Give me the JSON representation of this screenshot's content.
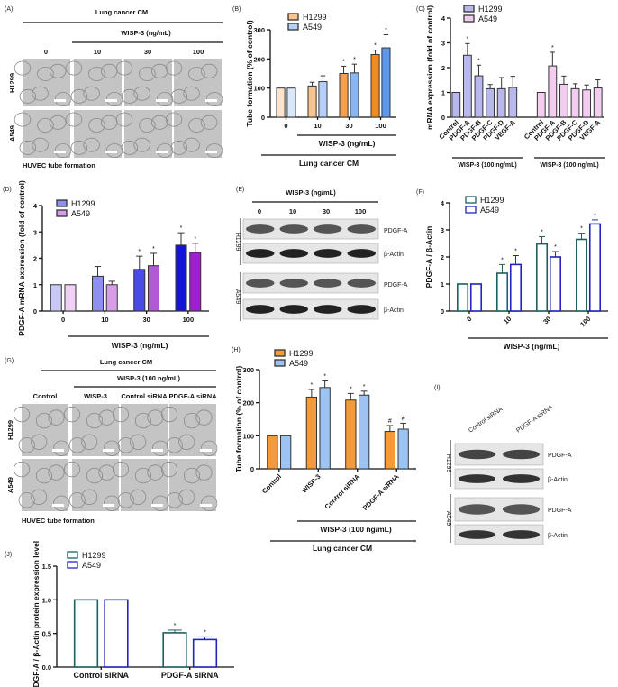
{
  "panels": {
    "A": {
      "tag": "(A)",
      "top": "Lung cancer CM",
      "sub": "WISP-3 (ng/mL)",
      "cols": [
        "0",
        "10",
        "30",
        "100"
      ],
      "rows": [
        "H1299",
        "A549"
      ],
      "caption": "HUVEC tube formation"
    },
    "E": {
      "tag": "(E)",
      "sub": "WISP-3 (ng/mL)",
      "cols": [
        "0",
        "10",
        "30",
        "100"
      ],
      "rows": [
        "H1299",
        "A549"
      ],
      "bands": [
        "PDGF-A",
        "β-Actin",
        "PDGF-A",
        "β-Actin"
      ]
    },
    "G": {
      "tag": "(G)",
      "top": "Lung cancer CM",
      "sub": "WISP-3 (100 ng/mL)",
      "cols": [
        "Control",
        "WISP-3",
        "Control siRNA",
        "PDGF-A siRNA"
      ],
      "rows": [
        "H1299",
        "A549"
      ],
      "caption": "HUVEC tube formation"
    },
    "I": {
      "tag": "(I)",
      "cols": [
        "Control siRNA",
        "PDGF-A siRNA"
      ],
      "rows": [
        "H1299",
        "A549"
      ],
      "bands": [
        "PDGF-A",
        "β-Actin",
        "PDGF-A",
        "β-Actin"
      ]
    }
  },
  "chart_data": [
    {
      "id": "B",
      "tag": "(B)",
      "type": "bar",
      "ylabel": "Tube formation (% of control)",
      "ylim": [
        0,
        300
      ],
      "yticks": [
        "0",
        "100",
        "200",
        "300"
      ],
      "categories": [
        "0",
        "10",
        "30",
        "100"
      ],
      "group_labels": [
        "WISP-3 (ng/mL)",
        "Lung cancer CM"
      ],
      "series": [
        {
          "name": "H1299",
          "values": [
            100,
            107,
            150,
            215
          ],
          "errors": [
            0,
            13,
            25,
            15
          ],
          "stars": [
            false,
            false,
            true,
            true
          ],
          "fills": [
            "#fde3cc",
            "#f9c38f",
            "#f6a04f",
            "#f28a1e"
          ],
          "stroke": "#333333"
        },
        {
          "name": "A549",
          "values": [
            100,
            122,
            152,
            238
          ],
          "errors": [
            0,
            20,
            30,
            45
          ],
          "stars": [
            false,
            false,
            true,
            true
          ],
          "fills": [
            "#dbe8fb",
            "#b6d0f7",
            "#8cb6f2",
            "#5f97ea"
          ],
          "stroke": "#333333"
        }
      ]
    },
    {
      "id": "C",
      "tag": "(C)",
      "type": "bar",
      "ylabel": "mRNA expression (fold of control)",
      "ylim": [
        0,
        4
      ],
      "yticks": [
        "0",
        "1",
        "2",
        "3",
        "4"
      ],
      "categories": [
        "Control",
        "PDGF-A",
        "PDGF-B",
        "PDGF-C",
        "PDGF-D",
        "VEGF-A"
      ],
      "group_labels": [
        "WISP-3 (100 ng/mL)",
        "WISP-3 (100 ng/mL)"
      ],
      "series": [
        {
          "name": "H1299",
          "values": [
            1,
            2.5,
            1.67,
            1.15,
            1.15,
            1.2
          ],
          "errors": [
            0,
            0.47,
            0.43,
            0.17,
            0.45,
            0.45
          ],
          "stars": [
            false,
            true,
            true,
            false,
            false,
            false
          ],
          "fills": [
            "#b9b8ec"
          ],
          "stroke": "#333333"
        },
        {
          "name": "A549",
          "values": [
            1,
            2.07,
            1.33,
            1.15,
            1.1,
            1.18
          ],
          "errors": [
            0,
            0.55,
            0.33,
            0.2,
            0.2,
            0.33
          ],
          "stars": [
            false,
            true,
            false,
            false,
            false,
            false
          ],
          "fills": [
            "#f2cdf0"
          ],
          "stroke": "#333333"
        }
      ]
    },
    {
      "id": "D",
      "tag": "(D)",
      "type": "bar",
      "ylabel": "PDGF-A mRNA expression (fold of control)",
      "ylim": [
        0,
        4
      ],
      "yticks": [
        "0",
        "1",
        "2",
        "3",
        "4"
      ],
      "categories": [
        "0",
        "10",
        "30",
        "100"
      ],
      "group_labels": [
        "WISP-3 (ng/mL)"
      ],
      "series": [
        {
          "name": "H1299",
          "values": [
            1,
            1.32,
            1.58,
            2.5
          ],
          "errors": [
            0,
            0.37,
            0.5,
            0.47
          ],
          "stars": [
            false,
            false,
            true,
            true
          ],
          "fills": [
            "#c9c9f5",
            "#8f8fef",
            "#4a4ae6",
            "#1414d9"
          ],
          "stroke": "#333333"
        },
        {
          "name": "A549",
          "values": [
            1,
            1,
            1.72,
            2.22
          ],
          "errors": [
            0,
            0.13,
            0.47,
            0.35
          ],
          "stars": [
            false,
            false,
            true,
            true
          ],
          "fills": [
            "#f0d0f6",
            "#d79ee8",
            "#b25ad6",
            "#9d1fd0"
          ],
          "stroke": "#333333"
        }
      ]
    },
    {
      "id": "F",
      "tag": "(F)",
      "type": "bar",
      "ylabel": "PDGF-A / β-Actin",
      "ylim": [
        0,
        4
      ],
      "yticks": [
        "0",
        "1",
        "2",
        "3",
        "4"
      ],
      "categories": [
        "0",
        "10",
        "30",
        "100"
      ],
      "group_labels": [
        "WISP-3 (ng/mL)"
      ],
      "series": [
        {
          "name": "H1299",
          "values": [
            1,
            1.4,
            2.48,
            2.65
          ],
          "errors": [
            0,
            0.32,
            0.27,
            0.23
          ],
          "stars": [
            false,
            true,
            true,
            true
          ],
          "fills": [
            "#ffffff"
          ],
          "stroke": "#1f5f5f"
        },
        {
          "name": "A549",
          "values": [
            1,
            1.72,
            2.0,
            3.22
          ],
          "errors": [
            0,
            0.33,
            0.2,
            0.15
          ],
          "stars": [
            false,
            true,
            true,
            true
          ],
          "fills": [
            "#ffffff"
          ],
          "stroke": "#2323c0"
        }
      ]
    },
    {
      "id": "H",
      "tag": "(H)",
      "type": "bar",
      "ylabel": "Tube formation (% of control)",
      "ylim": [
        0,
        300
      ],
      "yticks": [
        "0",
        "100",
        "200",
        "300"
      ],
      "categories": [
        "Control",
        "WISP-3",
        "Control siRNA",
        "PDGF-A siRNA"
      ],
      "group_labels": [
        "WISP-3 (100 ng/mL)",
        "Lung cancer CM"
      ],
      "series": [
        {
          "name": "H1299",
          "values": [
            100,
            217,
            208,
            113
          ],
          "errors": [
            0,
            23,
            20,
            18
          ],
          "stars": [
            "",
            "*",
            "*",
            "#"
          ],
          "fills": [
            "#f59a3a"
          ],
          "stroke": "#333333"
        },
        {
          "name": "A549",
          "values": [
            100,
            246,
            223,
            120
          ],
          "errors": [
            0,
            20,
            12,
            18
          ],
          "stars": [
            "",
            "*",
            "*",
            "#"
          ],
          "fills": [
            "#9cc3f2"
          ],
          "stroke": "#333333"
        }
      ]
    },
    {
      "id": "J",
      "tag": "(J)",
      "type": "bar",
      "ylabel": "PDGF-A / β-Actin protein expression level",
      "ylim": [
        0,
        1.5
      ],
      "yticks": [
        "0.0",
        "0.5",
        "1.0",
        "1.5"
      ],
      "categories": [
        "Control siRNA",
        "PDGF-A siRNA"
      ],
      "group_labels": [],
      "series": [
        {
          "name": "H1299",
          "values": [
            1,
            0.51
          ],
          "errors": [
            0,
            0.04
          ],
          "stars": [
            false,
            true
          ],
          "fills": [
            "#ffffff"
          ],
          "stroke": "#1f5f5f"
        },
        {
          "name": "A549",
          "values": [
            1,
            0.41
          ],
          "errors": [
            0,
            0.04
          ],
          "stars": [
            false,
            true
          ],
          "fills": [
            "#ffffff"
          ],
          "stroke": "#2323c0"
        }
      ]
    }
  ]
}
